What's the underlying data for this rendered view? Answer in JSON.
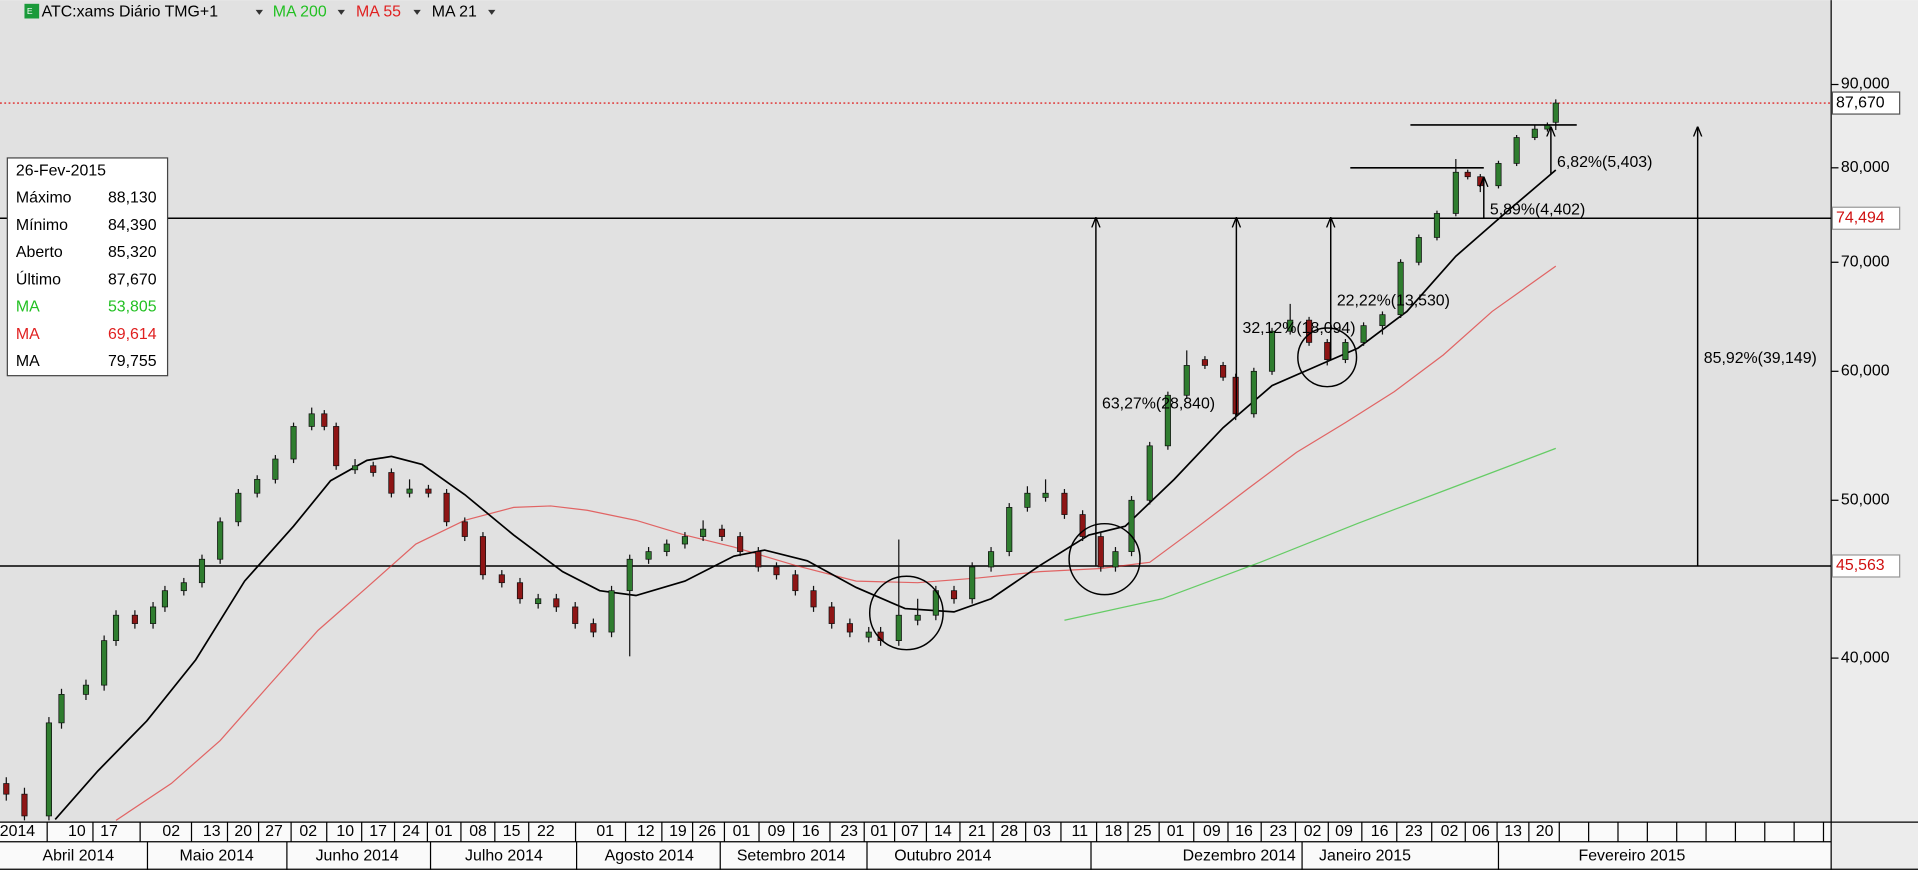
{
  "chart_data": {
    "type": "candlestick",
    "title": "ATC:xams Diário TMG+1",
    "x": [
      0.9,
      3.5,
      7,
      8.8,
      12.3,
      14.9,
      16.6,
      19.3,
      21.9,
      23.6,
      26.3,
      28.9,
      31.5,
      34.1,
      36.8,
      39.4,
      42,
      44.6,
      46.4,
      48.1,
      50.8,
      53.4,
      56,
      58.6,
      61.3,
      63.9,
      66.5,
      69.1,
      71.8,
      74.4,
      77,
      79.6,
      82.3,
      84.9,
      87.5,
      90.1,
      92.8,
      95.4,
      98,
      100.6,
      103.3,
      105.9,
      108.5,
      111.1,
      113.8,
      116.4,
      119,
      121.6,
      124.3,
      126,
      128.6,
      131.3,
      133.9,
      136.5,
      139.1,
      141.8,
      144.4,
      147,
      149.6,
      152.3,
      154.9,
      157.5,
      159.6,
      161.9,
      164.5,
      167.1,
      169.8,
      172.4,
      175,
      176.8,
      179.4,
      182,
      184.6,
      187.3,
      189.9,
      192.5,
      195.1,
      197.8,
      200.4,
      203,
      205.6,
      208.3,
      210,
      211.8,
      214.4,
      217,
      219.6,
      221.4,
      222.6
    ],
    "open": [
      33.5,
      33,
      32,
      36.5,
      38,
      38.5,
      41,
      42.5,
      42,
      43,
      44,
      44.5,
      46,
      48.5,
      50.5,
      51.5,
      53,
      55.5,
      56.5,
      55.5,
      52.2,
      52.5,
      52,
      50.5,
      50.8,
      50.5,
      48.5,
      47.5,
      45,
      44.5,
      43.2,
      43.5,
      43,
      42,
      41.5,
      44,
      46,
      46.5,
      47,
      47.5,
      48,
      47.5,
      46.5,
      45.5,
      45,
      44,
      43,
      42,
      41.2,
      41.5,
      41,
      42.2,
      42.5,
      44,
      43.5,
      45.5,
      46.5,
      49.5,
      50.2,
      50.5,
      49,
      47.5,
      45.5,
      46.5,
      50,
      54,
      58,
      61,
      60.5,
      59.5,
      56.5,
      60,
      63.5,
      64.5,
      62.5,
      61,
      62.5,
      64,
      65,
      70,
      72.5,
      75,
      79.5,
      79,
      78,
      80.5,
      83.5,
      84.5,
      85.32
    ],
    "high": [
      33.8,
      33.3,
      36.8,
      38.3,
      38.8,
      41.3,
      42.8,
      42.8,
      43.3,
      44.3,
      44.8,
      46.3,
      48.8,
      50.8,
      51.8,
      53.3,
      55.8,
      57,
      56.8,
      55.8,
      53,
      52.8,
      52.3,
      51.5,
      51.1,
      50.8,
      48.8,
      47.8,
      45.3,
      44.8,
      43.8,
      43.8,
      43.3,
      42.3,
      44.3,
      46.3,
      46.8,
      47.3,
      47.8,
      48.6,
      48.3,
      47.8,
      46.8,
      45.8,
      45.3,
      44.3,
      43.3,
      42.3,
      41.8,
      41.8,
      47.3,
      43.5,
      44.3,
      44.3,
      45.8,
      46.8,
      49.8,
      51,
      51.5,
      50.8,
      49.3,
      47.8,
      46.8,
      50.3,
      54.3,
      58.3,
      61.8,
      61.3,
      60.8,
      59.8,
      60.3,
      63.8,
      66,
      64.8,
      62.8,
      62.8,
      64.3,
      65.3,
      70.3,
      72.8,
      75.3,
      81,
      79.8,
      79.3,
      80.8,
      83.8,
      85,
      85.3,
      88.13
    ],
    "low": [
      32.7,
      31.8,
      31.8,
      36.2,
      37.7,
      38.2,
      40.7,
      41.7,
      41.7,
      42.7,
      43.7,
      44.2,
      45.7,
      48.2,
      50.2,
      51.2,
      52.7,
      55.2,
      55.2,
      52.2,
      51.9,
      51.7,
      50.2,
      50.2,
      50.2,
      48.2,
      47.2,
      44.7,
      44.2,
      43.2,
      42.9,
      42.7,
      41.7,
      41.2,
      41.2,
      40.1,
      45.7,
      46.2,
      46.7,
      47.2,
      47.2,
      46.2,
      45.2,
      44.7,
      43.7,
      42.7,
      41.7,
      41.2,
      40.9,
      40.7,
      40.7,
      41.9,
      42.2,
      43.2,
      43.2,
      45.2,
      46.2,
      49.2,
      49.9,
      48.7,
      47.2,
      45.2,
      45.2,
      46.2,
      49.7,
      53.7,
      57.7,
      60.2,
      59.2,
      56,
      56.2,
      59.7,
      63.2,
      62.2,
      60.5,
      60.7,
      62.2,
      63.2,
      64.7,
      69.7,
      72.2,
      74.7,
      78.7,
      77.3,
      77.7,
      80.2,
      83.2,
      84.2,
      84.39
    ],
    "close": [
      33,
      32,
      36.5,
      38,
      38.5,
      41,
      42.5,
      42,
      43,
      44,
      44.5,
      46,
      48.5,
      50.5,
      51.5,
      53,
      55.5,
      56.5,
      55.5,
      52.5,
      52.5,
      52,
      50.5,
      50.8,
      50.5,
      48.5,
      47.5,
      45,
      44.5,
      43.5,
      43.5,
      43,
      42,
      41.5,
      44,
      46,
      46.5,
      47,
      47.5,
      48,
      47.5,
      46.5,
      45.5,
      45,
      44,
      43,
      42,
      41.5,
      41.5,
      41,
      42.5,
      42.5,
      44,
      43.5,
      45.5,
      46.5,
      49.5,
      50.5,
      50.5,
      49,
      47.5,
      45.5,
      46.5,
      50,
      54,
      58,
      60.5,
      60.5,
      59.5,
      56.5,
      60,
      63.5,
      64.5,
      62.5,
      61,
      62.5,
      64,
      65,
      70,
      72.5,
      75,
      79.5,
      79,
      78,
      80.5,
      83.5,
      84.5,
      85,
      87.67
    ],
    "up_color": "#2f7d2f",
    "down_color": "#8e1515",
    "series": [
      {
        "name": "MA 200",
        "color": "#22c022",
        "x": [
          152.3,
          166.3,
          180.3,
          194.3,
          208.3,
          222.6
        ],
        "values": [
          42.2,
          43.5,
          45.8,
          48.4,
          51,
          53.805
        ]
      },
      {
        "name": "MA 55",
        "color": "#e02020",
        "x": [
          16.6,
          24.5,
          31.5,
          38.5,
          45.5,
          52.5,
          59.5,
          66.5,
          73.5,
          78.8,
          84,
          91,
          98,
          105,
          113.8,
          122.5,
          131.3,
          140,
          148.8,
          157.5,
          164.5,
          171.5,
          178.5,
          185.5,
          192.5,
          199.5,
          206.5,
          213.5,
          222.6
        ],
        "values": [
          31.8,
          33.5,
          35.6,
          38.5,
          41.6,
          44.2,
          47,
          48.6,
          49.5,
          49.6,
          49.3,
          48.6,
          47.6,
          46.8,
          45.6,
          44.6,
          44.5,
          44.8,
          45.2,
          45.4,
          45.8,
          48.2,
          50.8,
          53.5,
          55.8,
          58.3,
          61.4,
          65.3,
          69.614
        ]
      },
      {
        "name": "MA 21",
        "color": "#000000",
        "x": [
          7.9,
          14,
          21,
          28,
          35,
          42,
          47.3,
          52.5,
          56,
          60.4,
          66.5,
          73.5,
          80.5,
          85.8,
          91,
          98,
          105,
          109.4,
          115.5,
          122.5,
          129.5,
          136.5,
          141.8,
          148.8,
          155.8,
          161,
          168,
          175,
          182,
          189,
          194.3,
          201.3,
          208.3,
          215.3,
          222.6
        ],
        "values": [
          31.84,
          34.1,
          36.6,
          39.9,
          44.6,
          48.2,
          51.4,
          52.9,
          53.2,
          52.6,
          50.4,
          47.6,
          45.2,
          44,
          43.7,
          44.6,
          46.2,
          46.6,
          45.9,
          44.2,
          42.9,
          42.7,
          43.5,
          45.6,
          47.6,
          48.2,
          51.5,
          55.4,
          58.8,
          60.6,
          62,
          65.3,
          70.6,
          75,
          79.755
        ]
      }
    ],
    "log_y": true,
    "ylim": [
      31.72,
      101.4
    ],
    "yticks": [
      {
        "value": 40,
        "label": "40,000"
      },
      {
        "value": 50,
        "label": "50,000"
      },
      {
        "value": 60,
        "label": "60,000"
      },
      {
        "value": 70,
        "label": "70,000"
      },
      {
        "value": 80,
        "label": "80,000"
      },
      {
        "value": 90,
        "label": "90,000"
      }
    ],
    "xlim": [
      0,
      262
    ],
    "xticks": [
      {
        "value": 2.5,
        "label": "2014"
      },
      {
        "value": 11,
        "label": "10"
      },
      {
        "value": 15.6,
        "label": "17"
      },
      {
        "value": 24.5,
        "label": "02"
      },
      {
        "value": 30.3,
        "label": "13"
      },
      {
        "value": 34.8,
        "label": "20"
      },
      {
        "value": 39.2,
        "label": "27"
      },
      {
        "value": 44.1,
        "label": "02"
      },
      {
        "value": 49.4,
        "label": "10"
      },
      {
        "value": 54.1,
        "label": "17"
      },
      {
        "value": 58.8,
        "label": "24"
      },
      {
        "value": 63.5,
        "label": "01"
      },
      {
        "value": 68.4,
        "label": "08"
      },
      {
        "value": 73.2,
        "label": "15"
      },
      {
        "value": 78.1,
        "label": "22"
      },
      {
        "value": 86.6,
        "label": "01"
      },
      {
        "value": 92.4,
        "label": "12"
      },
      {
        "value": 97,
        "label": "19"
      },
      {
        "value": 101.2,
        "label": "26"
      },
      {
        "value": 106.1,
        "label": "01"
      },
      {
        "value": 111.1,
        "label": "09"
      },
      {
        "value": 116,
        "label": "16"
      },
      {
        "value": 121.5,
        "label": "23"
      },
      {
        "value": 125.8,
        "label": "01"
      },
      {
        "value": 130.2,
        "label": "07"
      },
      {
        "value": 134.9,
        "label": "14"
      },
      {
        "value": 139.8,
        "label": "21"
      },
      {
        "value": 144.4,
        "label": "28"
      },
      {
        "value": 149.1,
        "label": "03"
      },
      {
        "value": 154.5,
        "label": "11"
      },
      {
        "value": 159.3,
        "label": "18"
      },
      {
        "value": 163.5,
        "label": "25"
      },
      {
        "value": 168.2,
        "label": "01"
      },
      {
        "value": 173.4,
        "label": "09"
      },
      {
        "value": 178,
        "label": "16"
      },
      {
        "value": 182.9,
        "label": "23"
      },
      {
        "value": 187.8,
        "label": "02"
      },
      {
        "value": 192.3,
        "label": "09"
      },
      {
        "value": 197.4,
        "label": "16"
      },
      {
        "value": 202.3,
        "label": "23"
      },
      {
        "value": 207.4,
        "label": "02"
      },
      {
        "value": 211.9,
        "label": "06"
      },
      {
        "value": 216.5,
        "label": "13"
      },
      {
        "value": 221,
        "label": "20"
      }
    ],
    "month_ticks": [
      {
        "value": 11.2,
        "label": "Abril 2014"
      },
      {
        "value": 31,
        "label": "Maio 2014"
      },
      {
        "value": 51.1,
        "label": "Junho 2014"
      },
      {
        "value": 72.1,
        "label": "Julho 2014"
      },
      {
        "value": 92.9,
        "label": "Agosto 2014"
      },
      {
        "value": 113.2,
        "label": "Setembro 2014"
      },
      {
        "value": 134.9,
        "label": "Outubro 2014"
      },
      {
        "value": 177.3,
        "label": "Dezembro 2014"
      },
      {
        "value": 195.3,
        "label": "Janeiro 2015"
      },
      {
        "value": 233.5,
        "label": "Fevereiro 2015"
      }
    ],
    "levels": [
      {
        "value": 74.494,
        "label": "74,494"
      },
      {
        "value": 45.563,
        "label": "45,563"
      }
    ],
    "last_price": {
      "value": 87.67,
      "label": "87,670"
    },
    "trendlines": [
      {
        "x": [
          201.8,
          225.6
        ],
        "values": [
          85,
          85
        ]
      },
      {
        "x": [
          193.2,
          212.3
        ],
        "values": [
          80,
          80
        ]
      }
    ],
    "arrows": [
      {
        "text": "63,27%(28,840)",
        "x": 156.8,
        "values": [
          45.6,
          74.494
        ]
      },
      {
        "text": "32,12%(18,094)",
        "x": 176.9,
        "values": [
          56.4,
          74.494
        ]
      },
      {
        "text": "22,22%(13,530)",
        "x": 190.4,
        "values": [
          60.96,
          74.494
        ]
      },
      {
        "text": "85,92%(39,149)",
        "x": 242.9,
        "values": [
          45.563,
          84.71
        ]
      },
      {
        "text": "5,89%(4,402)",
        "x": 212.3,
        "values": [
          74.494,
          78.9
        ]
      },
      {
        "text": "6,82%(5,403)",
        "x": 221.9,
        "values": [
          79.3,
          84.71
        ]
      }
    ],
    "info": {
      "date": "26-Fev-2015",
      "labels": [
        "Máximo",
        "Mínimo",
        "Aberto",
        "Último",
        "MA",
        "MA",
        "MA"
      ],
      "values": [
        88.13,
        84.39,
        85.32,
        87.67,
        53.805,
        69.614,
        79.755
      ],
      "value_labels": [
        "88,130",
        "84,390",
        "85,320",
        "87,670",
        "53,805",
        "69,614",
        "79,755"
      ],
      "colors": [
        "#000000",
        "#000000",
        "#000000",
        "#000000",
        "#22c022",
        "#e02020",
        "#000000"
      ]
    }
  }
}
